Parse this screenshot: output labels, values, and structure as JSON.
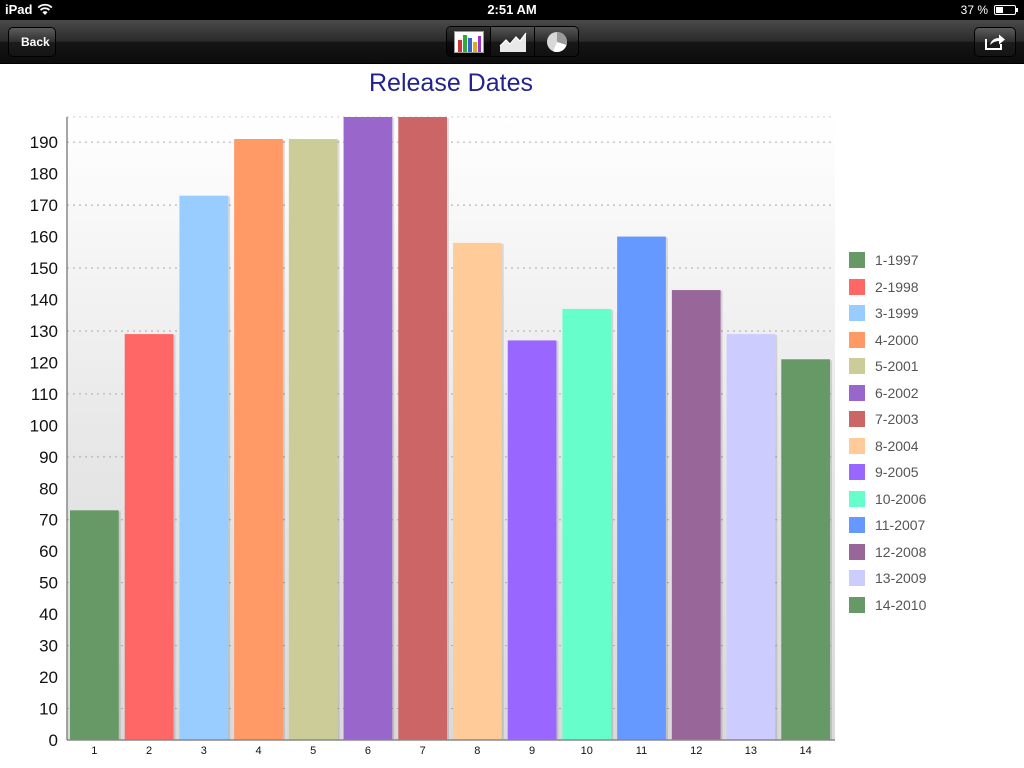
{
  "status_bar": {
    "device": "iPad",
    "time": "2:51 AM",
    "battery_percent": "37 %",
    "battery_level": 0.37
  },
  "toolbar": {
    "back_label": "Back",
    "chart_modes": [
      {
        "icon": "bar-chart-icon",
        "selected": true
      },
      {
        "icon": "area-chart-icon",
        "selected": false
      },
      {
        "icon": "pie-chart-icon",
        "selected": false
      }
    ],
    "share_icon": "share-icon"
  },
  "chart_data": {
    "type": "bar",
    "title": "Release Dates",
    "categories": [
      "1",
      "2",
      "3",
      "4",
      "5",
      "6",
      "7",
      "8",
      "9",
      "10",
      "11",
      "12",
      "13",
      "14"
    ],
    "values": [
      73,
      129,
      173,
      191,
      191,
      200,
      200,
      158,
      127,
      137,
      160,
      143,
      129,
      121
    ],
    "ylim": [
      0,
      198
    ],
    "yticks": [
      0,
      10,
      20,
      30,
      40,
      50,
      60,
      70,
      80,
      90,
      100,
      110,
      120,
      130,
      140,
      150,
      160,
      170,
      180,
      190
    ],
    "grid": true,
    "legend_position": "right",
    "legend": [
      "1-1997",
      "2-1998",
      "3-1999",
      "4-2000",
      "5-2001",
      "6-2002",
      "7-2003",
      "8-2004",
      "9-2005",
      "10-2006",
      "11-2007",
      "12-2008",
      "13-2009",
      "14-2010"
    ],
    "colors": [
      "#669966",
      "#ff6666",
      "#99ccff",
      "#ff9966",
      "#cccc99",
      "#9966cc",
      "#cc6666",
      "#ffcc99",
      "#9966ff",
      "#66ffcc",
      "#6699ff",
      "#996699",
      "#ccccff",
      "#669966"
    ]
  }
}
